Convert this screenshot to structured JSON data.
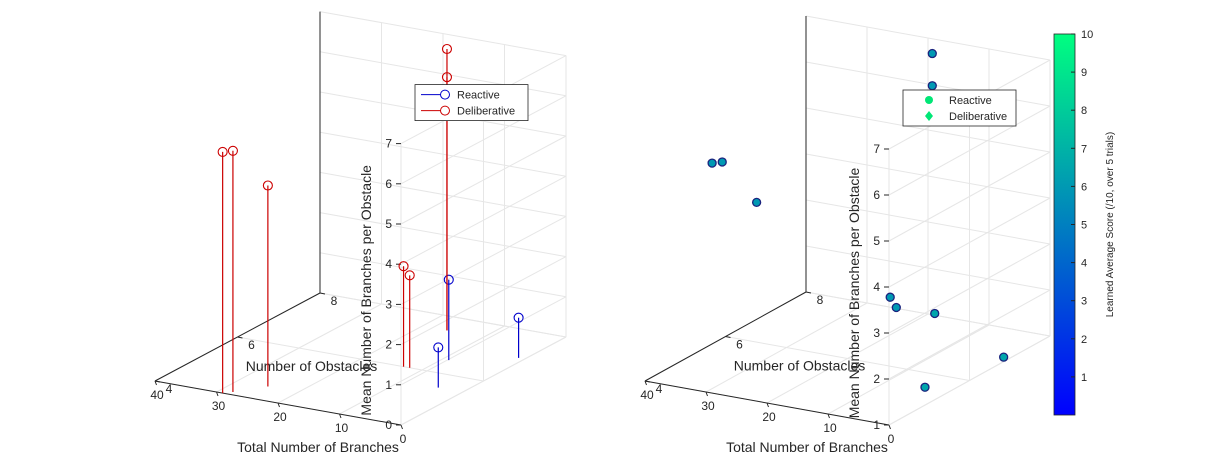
{
  "chart_data": [
    {
      "type": "stem3",
      "xlabel": "Total Number of Branches",
      "ylabel": "Number of Obstacles",
      "zlabel": "Mean Number of Branches per Obstacle",
      "xlim": [
        0,
        40
      ],
      "ylim": [
        4,
        8
      ],
      "zlim": [
        0,
        7
      ],
      "xticks": [
        "0",
        "10",
        "20",
        "30",
        "40"
      ],
      "yticks": [
        "4",
        "6",
        "8"
      ],
      "zticks": [
        "0",
        "1",
        "2",
        "3",
        "4",
        "5",
        "6",
        "7"
      ],
      "grid": true,
      "legend_position": "top-left",
      "series": [
        {
          "name": "Reactive",
          "color": "#0000cc",
          "marker": "circle-open",
          "points": [
            {
              "x": 9,
              "y": 6.5,
              "z": 2.0
            },
            {
              "x": 4,
              "y": 5.5,
              "z": 1.0
            },
            {
              "x": 1,
              "y": 7.0,
              "z": 1.0
            }
          ]
        },
        {
          "name": "Deliberative",
          "color": "#cc0000",
          "marker": "circle-open",
          "points": [
            {
              "x": 29,
              "y": 4.0,
              "z": 6.0
            },
            {
              "x": 28,
              "y": 4.1,
              "z": 6.0
            },
            {
              "x": 25,
              "y": 4.5,
              "z": 5.0
            },
            {
              "x": 16,
              "y": 7.5,
              "z": 7.0
            },
            {
              "x": 16,
              "y": 7.5,
              "z": 6.3
            },
            {
              "x": 13,
              "y": 6.0,
              "z": 2.5
            },
            {
              "x": 12,
              "y": 6.0,
              "z": 2.3
            }
          ]
        }
      ]
    },
    {
      "type": "scatter3",
      "xlabel": "Total Number of Branches",
      "ylabel": "Number of Obstacles",
      "zlabel": "Mean Number of Branches per Obstacle",
      "xlim": [
        0,
        40
      ],
      "ylim": [
        4,
        8
      ],
      "zlim": [
        1,
        7
      ],
      "xticks": [
        "0",
        "10",
        "20",
        "30",
        "40"
      ],
      "yticks": [
        "4",
        "6",
        "8"
      ],
      "zticks": [
        "1",
        "2",
        "3",
        "4",
        "5",
        "6",
        "7"
      ],
      "grid": true,
      "legend_position": "top-left",
      "colorbar": {
        "label": "Learned Average Score (/10, over 5 trials)",
        "min": 0,
        "max": 10,
        "ticks": [
          "1",
          "2",
          "3",
          "4",
          "5",
          "6",
          "7",
          "8",
          "9",
          "10"
        ],
        "colormap": [
          "#0000ff",
          "#00ff80"
        ]
      },
      "series": [
        {
          "name": "Reactive",
          "marker": "circle",
          "legend_color": "#00e676",
          "points": [
            {
              "x": 9,
              "y": 6.5,
              "z": 2.0,
              "c": 6.5
            },
            {
              "x": 4,
              "y": 5.5,
              "z": 1.0,
              "c": 6.5
            },
            {
              "x": 1,
              "y": 7.0,
              "z": 1.0,
              "c": 6.5
            }
          ]
        },
        {
          "name": "Deliberative",
          "marker": "diamond",
          "legend_color": "#00e676",
          "points": [
            {
              "x": 29,
              "y": 4.0,
              "z": 6.0,
              "c": 6.0
            },
            {
              "x": 28,
              "y": 4.1,
              "z": 6.0,
              "c": 6.0
            },
            {
              "x": 25,
              "y": 4.5,
              "z": 5.0,
              "c": 6.0
            },
            {
              "x": 16,
              "y": 7.5,
              "z": 7.0,
              "c": 6.0
            },
            {
              "x": 16,
              "y": 7.5,
              "z": 6.3,
              "c": 6.0
            },
            {
              "x": 13,
              "y": 6.0,
              "z": 2.5,
              "c": 6.0
            },
            {
              "x": 12,
              "y": 6.0,
              "z": 2.3,
              "c": 6.0
            }
          ]
        }
      ]
    }
  ]
}
